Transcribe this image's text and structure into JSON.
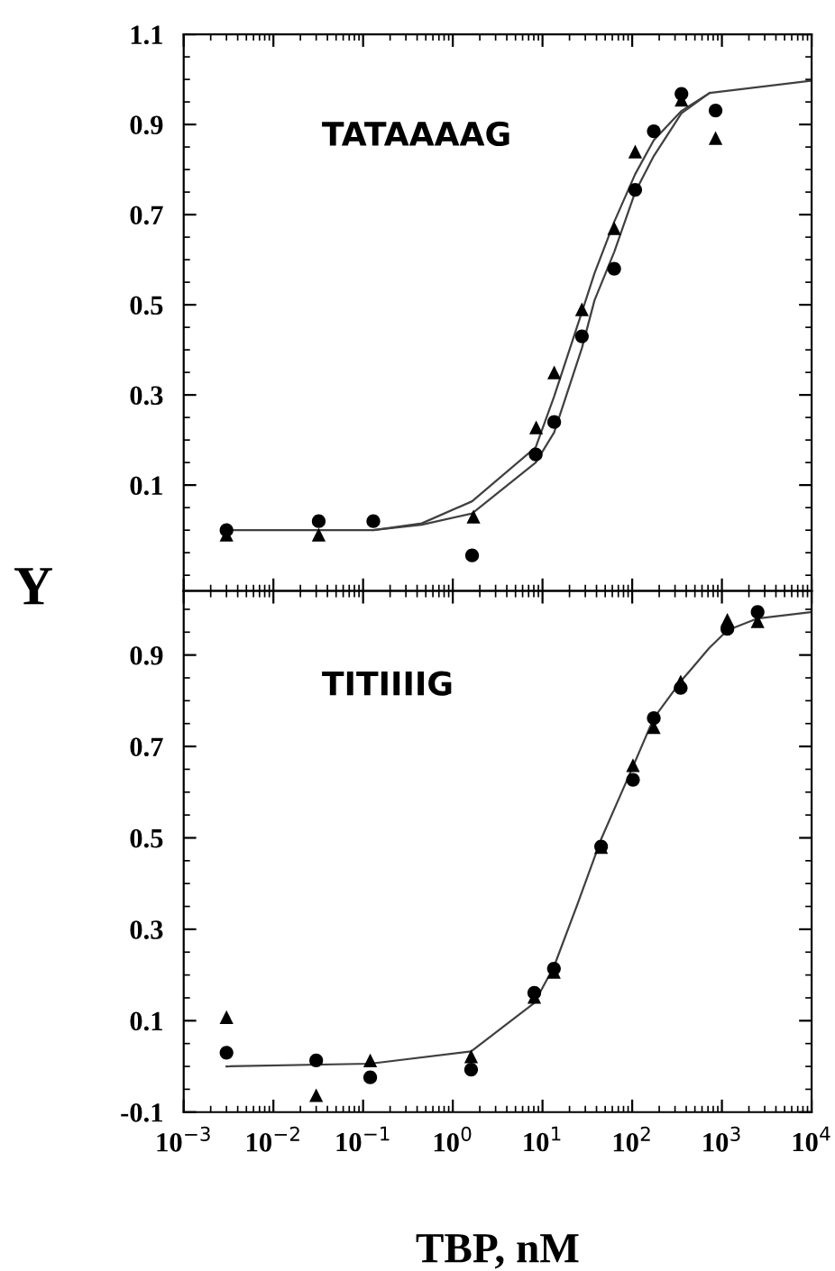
{
  "chart_data": [
    {
      "type": "scatter",
      "annotations": [
        "TATAAAAG"
      ],
      "log": "x",
      "xlim": [
        0.001,
        10000
      ],
      "ylim": [
        -0.135,
        1.1
      ],
      "xticks": [
        {
          "value": 0.001,
          "label": null
        },
        {
          "value": 0.01,
          "label": null
        },
        {
          "value": 0.1,
          "label": null
        },
        {
          "value": 1,
          "label": null
        },
        {
          "value": 10,
          "label": null
        },
        {
          "value": 100,
          "label": null
        },
        {
          "value": 1000,
          "label": null
        },
        {
          "value": 10000,
          "label": null
        }
      ],
      "yticks": [
        0.1,
        0.3,
        0.5,
        0.7,
        0.9,
        1.1
      ],
      "tick_labels": "y",
      "grid": false,
      "legend": false,
      "series": [
        {
          "marker": "circle",
          "color": "#000000",
          "x": [
            0.003,
            0.032,
            0.13,
            1.64,
            8.4,
            13.5,
            27.5,
            63,
            108,
            174,
            354,
            850
          ],
          "values": [
            0.0,
            0.02,
            0.02,
            -0.056,
            0.168,
            0.24,
            0.43,
            0.58,
            0.755,
            0.885,
            0.968,
            0.931
          ]
        },
        {
          "marker": "triangle",
          "color": "#000000",
          "x": [
            0.003,
            0.032,
            1.7,
            8.5,
            13.5,
            27.5,
            63,
            108,
            354,
            850
          ],
          "values": [
            -0.01,
            -0.01,
            0.03,
            0.228,
            0.35,
            0.49,
            0.67,
            0.84,
            0.955,
            0.87
          ]
        },
        {
          "type": "line",
          "marker": "none",
          "line_style": "solid",
          "color": "#404040",
          "x": [
            0.003,
            0.13,
            0.45,
            1.64,
            8.4,
            13.5,
            27.5,
            38,
            63,
            108,
            174,
            354,
            730,
            10000
          ],
          "values": [
            0.0,
            0.0,
            0.015,
            0.064,
            0.184,
            0.297,
            0.484,
            0.57,
            0.684,
            0.79,
            0.865,
            0.93,
            0.97,
            0.997
          ]
        },
        {
          "type": "line",
          "marker": "none",
          "line_style": "solid",
          "color": "#404040",
          "x": [
            0.13,
            0.45,
            1.64,
            8.4,
            13.5,
            27.5,
            38,
            63,
            108,
            174,
            354,
            730
          ],
          "values": [
            0.0,
            0.012,
            0.037,
            0.15,
            0.217,
            0.404,
            0.51,
            0.617,
            0.75,
            0.83,
            0.925,
            0.97
          ]
        }
      ]
    },
    {
      "type": "scatter",
      "annotations": [
        "TITIIIIG"
      ],
      "log": "x",
      "xlabel": "TBP, nM",
      "ylabel": "Y",
      "xlim": [
        0.001,
        10000
      ],
      "ylim": [
        -0.1,
        1.04
      ],
      "xticks": [
        {
          "value": 0.001,
          "label": "10$^{−3}$"
        },
        {
          "value": 0.01,
          "label": "10$^{−2}$"
        },
        {
          "value": 0.1,
          "label": "10$^{−1}$"
        },
        {
          "value": 1,
          "label": "10$^{0}$"
        },
        {
          "value": 10,
          "label": "10$^{1}$"
        },
        {
          "value": 100,
          "label": "10$^{2}$"
        },
        {
          "value": 1000,
          "label": "10$^{3}$"
        },
        {
          "value": 10000,
          "label": "10$^{4}$"
        }
      ],
      "yticks": [
        {
          "value": -0.1,
          "label": "-0.1"
        },
        0.1,
        0.3,
        0.5,
        0.7,
        0.9
      ],
      "grid": false,
      "legend": false,
      "series": [
        {
          "marker": "circle",
          "color": "#000000",
          "x": [
            0.003,
            0.03,
            0.12,
            1.6,
            8.1,
            13.4,
            45,
            102,
            174,
            347,
            1150,
            2500
          ],
          "values": [
            0.03,
            0.013,
            -0.024,
            -0.007,
            0.161,
            0.214,
            0.481,
            0.627,
            0.762,
            0.828,
            0.957,
            0.994
          ]
        },
        {
          "marker": "triangle",
          "color": "#000000",
          "x": [
            0.003,
            0.03,
            0.12,
            1.6,
            8.1,
            13.4,
            45,
            102,
            174,
            347,
            1150,
            2500
          ],
          "values": [
            0.108,
            -0.063,
            0.013,
            0.022,
            0.152,
            0.207,
            0.48,
            0.659,
            0.742,
            0.842,
            0.977,
            0.974
          ]
        },
        {
          "type": "line",
          "marker": "none",
          "line_style": "solid",
          "color": "#404040",
          "x": [
            0.003,
            0.12,
            1.6,
            8.1,
            13.4,
            24,
            45,
            70,
            102,
            174,
            347,
            720,
            1150,
            2500,
            10000
          ],
          "values": [
            0.0,
            0.006,
            0.033,
            0.139,
            0.218,
            0.35,
            0.497,
            0.583,
            0.656,
            0.762,
            0.842,
            0.915,
            0.954,
            0.98,
            0.994
          ]
        }
      ]
    }
  ]
}
